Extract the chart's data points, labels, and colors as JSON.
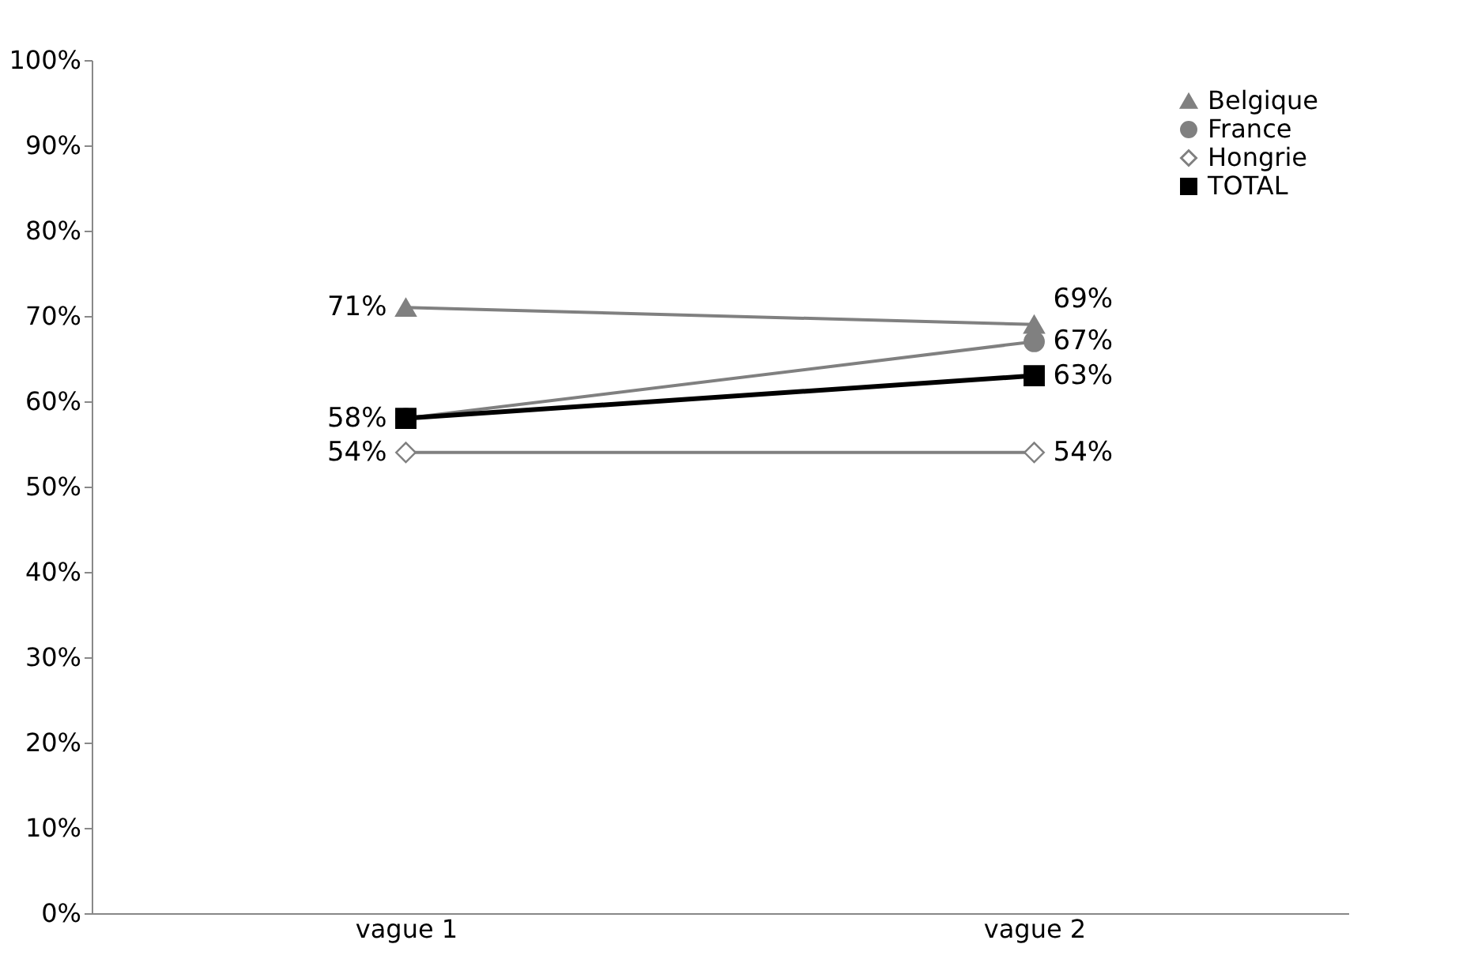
{
  "chart_data": {
    "type": "line",
    "categories": [
      "vague 1",
      "vague 2"
    ],
    "series": [
      {
        "name": "Belgique",
        "color": "#808080",
        "marker": "triangle",
        "values": [
          71,
          69
        ],
        "value_labels": [
          "71%",
          "69%"
        ]
      },
      {
        "name": "France",
        "color": "#808080",
        "marker": "circle",
        "values": [
          58,
          67
        ],
        "value_labels": [
          null,
          "67%"
        ]
      },
      {
        "name": "Hongrie",
        "color": "#808080",
        "marker": "diamond",
        "values": [
          54,
          54
        ],
        "value_labels": [
          "54%",
          "54%"
        ]
      },
      {
        "name": "TOTAL",
        "color": "#000000",
        "marker": "square",
        "values": [
          58,
          63
        ],
        "value_labels": [
          "58%",
          "63%"
        ]
      }
    ],
    "ylim": [
      0,
      100
    ],
    "yticks": [
      {
        "value": 0,
        "label": "0%"
      },
      {
        "value": 10,
        "label": "10%"
      },
      {
        "value": 20,
        "label": "20%"
      },
      {
        "value": 30,
        "label": "30%"
      },
      {
        "value": 40,
        "label": "40%"
      },
      {
        "value": 50,
        "label": "50%"
      },
      {
        "value": 60,
        "label": "60%"
      },
      {
        "value": 70,
        "label": "70%"
      },
      {
        "value": 80,
        "label": "80%"
      },
      {
        "value": 90,
        "label": "90%"
      },
      {
        "value": 100,
        "label": "100%"
      }
    ],
    "grid": false,
    "legend": "top right"
  }
}
